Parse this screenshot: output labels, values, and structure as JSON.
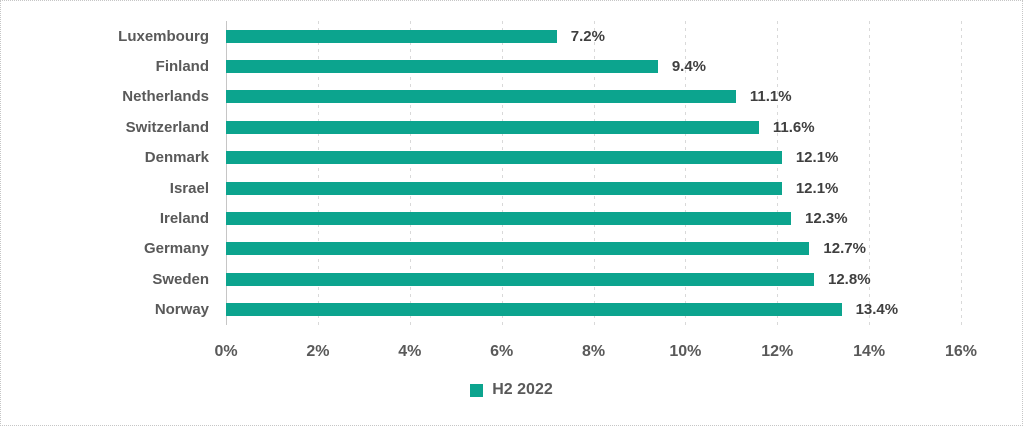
{
  "chart_data": {
    "type": "bar",
    "orientation": "horizontal",
    "title": "",
    "categories": [
      "Luxembourg",
      "Finland",
      "Netherlands",
      "Switzerland",
      "Denmark",
      "Israel",
      "Ireland",
      "Germany",
      "Sweden",
      "Norway"
    ],
    "series": [
      {
        "name": "H2 2022",
        "values": [
          7.2,
          9.4,
          11.1,
          11.6,
          12.1,
          12.1,
          12.3,
          12.7,
          12.8,
          13.4
        ]
      }
    ],
    "value_labels": [
      "7.2%",
      "9.4%",
      "11.1%",
      "11.6%",
      "12.1%",
      "12.1%",
      "12.3%",
      "12.7%",
      "12.8%",
      "13.4%"
    ],
    "xlabel": "",
    "ylabel": "",
    "xlim": [
      0,
      16
    ],
    "x_tick_step": 2,
    "x_tick_labels": [
      "0%",
      "2%",
      "4%",
      "6%",
      "8%",
      "10%",
      "12%",
      "14%",
      "16%"
    ],
    "grid": "vertical-dashed",
    "legend_position": "bottom-center",
    "colors": {
      "bar": "#0ca48e",
      "axis_text": "#595959",
      "data_label": "#3f3f3f",
      "gridline": "#d9d9d9",
      "axis_line": "#c6c6c6",
      "frame_border": "#c6c6c6"
    }
  }
}
